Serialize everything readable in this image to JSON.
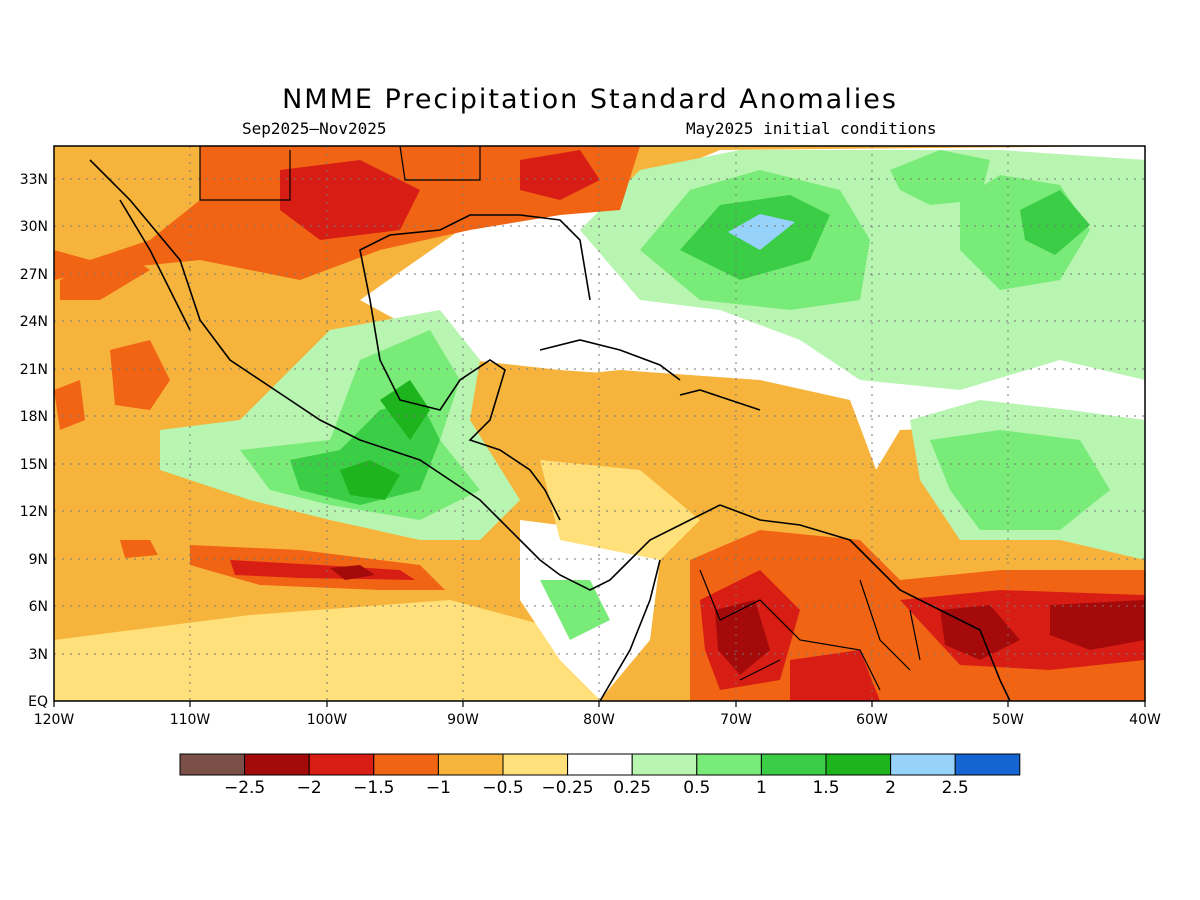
{
  "title": "NMME Precipitation Standard Anomalies",
  "subtitle_left": "Sep2025–Nov2025",
  "subtitle_right": "May2025 initial conditions",
  "map": {
    "lon_range": [
      -120,
      -40
    ],
    "lat_range": [
      0,
      35
    ],
    "lon_ticks": [
      "120W",
      "110W",
      "100W",
      "90W",
      "80W",
      "70W",
      "60W",
      "50W",
      "40W"
    ],
    "lat_ticks": [
      "EQ",
      "3N",
      "6N",
      "9N",
      "12N",
      "15N",
      "18N",
      "21N",
      "24N",
      "27N",
      "30N",
      "33N"
    ],
    "grid": true
  },
  "legend": {
    "colors": [
      "#7a5048",
      "#a50a0a",
      "#d81e14",
      "#f06414",
      "#f7b43c",
      "#ffe07a",
      "#ffffff",
      "#b8f5b0",
      "#78eb78",
      "#3ccd46",
      "#1eb41e",
      "#96d2fa",
      "#1464d2"
    ],
    "labels": [
      "−2.5",
      "−2",
      "−1.5",
      "−1",
      "−0.5",
      "−0.25",
      "0.25",
      "0.5",
      "1",
      "1.5",
      "2",
      "2.5"
    ]
  }
}
